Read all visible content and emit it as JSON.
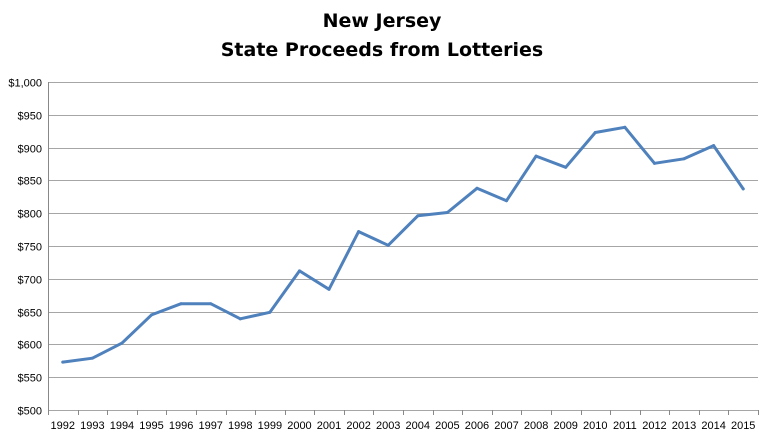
{
  "chart_data": {
    "type": "line",
    "title": "New Jersey",
    "subtitle": "State Proceeds from Lotteries",
    "x": [
      "1992",
      "1993",
      "1994",
      "1995",
      "1996",
      "1997",
      "1998",
      "1999",
      "2000",
      "2001",
      "2002",
      "2003",
      "2004",
      "2005",
      "2006",
      "2007",
      "2008",
      "2009",
      "2010",
      "2011",
      "2012",
      "2013",
      "2014",
      "2015"
    ],
    "series": [
      {
        "values": [
          573,
          579,
          602,
          645,
          662,
          662,
          639,
          649,
          712,
          684,
          772,
          751,
          796,
          801,
          838,
          819,
          887,
          870,
          923,
          931,
          876,
          883,
          903,
          837
        ],
        "color": "#4f81bd"
      }
    ],
    "y_ticks": [
      "$500",
      "$550",
      "$600",
      "$650",
      "$700",
      "$750",
      "$800",
      "$850",
      "$900",
      "$950",
      "$1,000"
    ],
    "ylim": [
      500,
      1000
    ],
    "grid": true,
    "legend": "none"
  }
}
